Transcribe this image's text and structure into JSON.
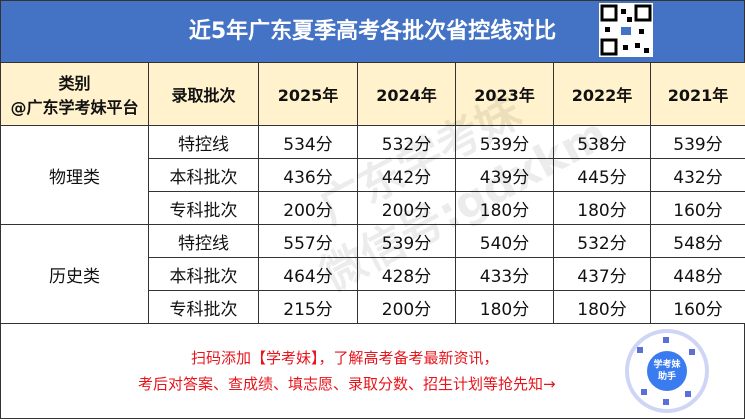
{
  "header": {
    "title": "近5年广东夏季高考各批次省控线对比"
  },
  "table": {
    "category_header": [
      "类别",
      "@广东学考妹平台"
    ],
    "columns": [
      "录取批次",
      "2025年",
      "2024年",
      "2023年",
      "2022年",
      "2021年"
    ],
    "groups": [
      {
        "name": "物理类",
        "rows": [
          [
            "特控线",
            "534分",
            "532分",
            "539分",
            "538分",
            "539分"
          ],
          [
            "本科批次",
            "436分",
            "442分",
            "439分",
            "445分",
            "432分"
          ],
          [
            "专科批次",
            "200分",
            "200分",
            "180分",
            "180分",
            "160分"
          ]
        ]
      },
      {
        "name": "历史类",
        "rows": [
          [
            "特控线",
            "557分",
            "539分",
            "540分",
            "532分",
            "548分"
          ],
          [
            "本科批次",
            "464分",
            "428分",
            "433分",
            "437分",
            "448分"
          ],
          [
            "专科批次",
            "215分",
            "200分",
            "180分",
            "180分",
            "160分"
          ]
        ]
      }
    ]
  },
  "watermark": [
    "广东学考妹",
    "微信号:gdxkm"
  ],
  "footer": {
    "lines": [
      "扫码添加【学考妹】，了解高考备考最新资讯，",
      "考后对答案、查成绩、填志愿、录取分数、招生计划等抢先知→"
    ],
    "badge": [
      "学考妹",
      "助手"
    ]
  }
}
